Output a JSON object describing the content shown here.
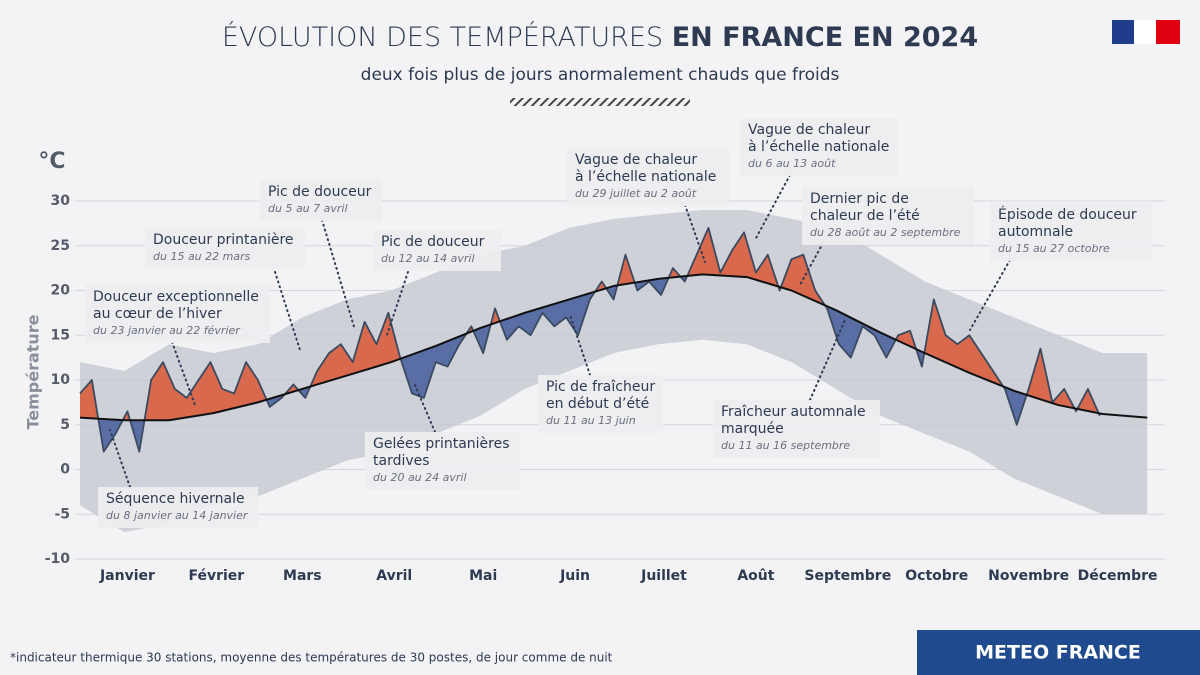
{
  "chart_data": {
    "type": "line",
    "title": "ÉVOLUTION DES TEMPÉRATURES",
    "title_bold": "EN FRANCE EN 2024",
    "subtitle": "deux fois plus de jours anormalement chauds que froids",
    "unit": "°C",
    "ylabel": "Température",
    "footnote": "*indicateur thermique 30 stations, moyenne des températures de 30 postes, de jour comme de nuit",
    "brand": "METEO FRANCE",
    "xlim": [
      0,
      366
    ],
    "xticks": [
      {
        "value": 16,
        "label": "Janvier"
      },
      {
        "value": 46,
        "label": "Février"
      },
      {
        "value": 75,
        "label": "Mars"
      },
      {
        "value": 106,
        "label": "Avril"
      },
      {
        "value": 136,
        "label": "Mai"
      },
      {
        "value": 167,
        "label": "Juin"
      },
      {
        "value": 197,
        "label": "Juillet"
      },
      {
        "value": 228,
        "label": "Août"
      },
      {
        "value": 259,
        "label": "Septembre"
      },
      {
        "value": 289,
        "label": "Octobre"
      },
      {
        "value": 320,
        "label": "Novembre"
      },
      {
        "value": 350,
        "label": "Décembre"
      }
    ],
    "ylim": [
      -10,
      30
    ],
    "yticks": [
      -10,
      -5,
      0,
      5,
      10,
      15,
      20,
      25,
      30
    ],
    "grid": true,
    "above_color": "#d9694c",
    "below_color": "#5a6ea6",
    "band": {
      "color": "#c8cad3",
      "x": [
        0,
        15,
        30,
        45,
        60,
        75,
        90,
        105,
        120,
        135,
        150,
        165,
        180,
        195,
        210,
        225,
        240,
        255,
        270,
        285,
        300,
        315,
        330,
        345,
        360
      ],
      "upper": [
        12,
        11,
        14,
        13,
        14,
        17,
        19,
        20,
        22,
        24,
        25,
        27,
        28,
        28.5,
        29,
        29,
        28,
        27,
        24,
        21,
        19,
        17,
        15,
        13,
        13
      ],
      "lower": [
        -4,
        -7,
        -6,
        -4,
        -3,
        -1,
        1,
        2,
        4,
        6,
        9,
        11,
        13,
        14,
        14.5,
        14,
        12,
        9,
        6,
        4,
        2,
        -1,
        -3,
        -5,
        -5
      ]
    },
    "series": [
      {
        "color": "#3a4a60",
        "x": [
          0,
          4,
          8,
          12,
          16,
          20,
          24,
          28,
          32,
          36,
          40,
          44,
          48,
          52,
          56,
          60,
          64,
          68,
          72,
          76,
          80,
          84,
          88,
          92,
          96,
          100,
          104,
          108,
          112,
          116,
          120,
          124,
          128,
          132,
          136,
          140,
          144,
          148,
          152,
          156,
          160,
          164,
          168,
          172,
          176,
          180,
          184,
          188,
          192,
          196,
          200,
          204,
          208,
          212,
          216,
          220,
          224,
          228,
          232,
          236,
          240,
          244,
          248,
          252,
          256,
          260,
          264,
          268,
          272,
          276,
          280,
          284,
          288,
          292,
          296,
          300,
          304,
          308,
          312,
          316,
          320,
          324,
          328,
          332,
          336,
          340,
          344
        ],
        "values": [
          8.5,
          10,
          2,
          4,
          6.5,
          2,
          10,
          12,
          9,
          8,
          10,
          12,
          9,
          8.5,
          12,
          10,
          7,
          8,
          9.5,
          8,
          11,
          13,
          14,
          12,
          16.5,
          14,
          17.5,
          12.5,
          8.5,
          8,
          12,
          11.5,
          14,
          16,
          13,
          18,
          14.5,
          16,
          15,
          17.5,
          16,
          17,
          15,
          19,
          21,
          19,
          24,
          20,
          21,
          19.5,
          22.5,
          21,
          24,
          27,
          22,
          24.5,
          26.5,
          22,
          24,
          20,
          23.5,
          24,
          20,
          18,
          14,
          12.5,
          16,
          15,
          12.5,
          15,
          15.5,
          11.5,
          19,
          15,
          14,
          15,
          13,
          11,
          9,
          5,
          9,
          13.5,
          7.5,
          9,
          6.5,
          9,
          6
        ]
      },
      {
        "color": "#111111",
        "x": [
          0,
          15,
          30,
          45,
          60,
          75,
          90,
          105,
          120,
          135,
          150,
          165,
          180,
          195,
          210,
          225,
          240,
          255,
          270,
          285,
          300,
          315,
          330,
          345,
          360
        ],
        "values": [
          5.8,
          5.5,
          5.5,
          6.3,
          7.5,
          9,
          10.5,
          12,
          13.8,
          15.8,
          17.5,
          19,
          20.5,
          21.3,
          21.8,
          21.5,
          20,
          17.8,
          15.3,
          13,
          10.8,
          8.8,
          7.2,
          6.2,
          5.8
        ]
      }
    ],
    "annotations": [
      {
        "lines": [
          "Douceur exceptionnelle",
          "au cœur de l’hiver"
        ],
        "date": "du 23 janvier au 22 février"
      },
      {
        "lines": [
          "Douceur printanière"
        ],
        "date": "du 15 au 22 mars"
      },
      {
        "lines": [
          "Pic de douceur"
        ],
        "date": "du 5 au 7 avril"
      },
      {
        "lines": [
          "Pic de douceur"
        ],
        "date": "du 12 au 14 avril"
      },
      {
        "lines": [
          "Séquence hivernale"
        ],
        "date": "du 8 janvier au 14 janvier"
      },
      {
        "lines": [
          "Gelées printanières",
          "tardives"
        ],
        "date": "du 20 au 24 avril"
      },
      {
        "lines": [
          "Vague de chaleur",
          "à l’échelle nationale"
        ],
        "date": "du 29 juillet au 2 août"
      },
      {
        "lines": [
          "Vague de chaleur",
          "à l’échelle nationale"
        ],
        "date": "du 6 au 13 août"
      },
      {
        "lines": [
          "Pic de fraîcheur",
          "en début d’été"
        ],
        "date": "du 11 au 13 juin"
      },
      {
        "lines": [
          "Dernier pic de",
          "chaleur de l’été"
        ],
        "date": "du 28 août au 2 septembre"
      },
      {
        "lines": [
          "Fraîcheur automnale",
          "marquée"
        ],
        "date": "du 11 au 16 septembre"
      },
      {
        "lines": [
          "Épisode de douceur",
          "automnale"
        ],
        "date": "du 15 au 27 octobre"
      }
    ]
  }
}
